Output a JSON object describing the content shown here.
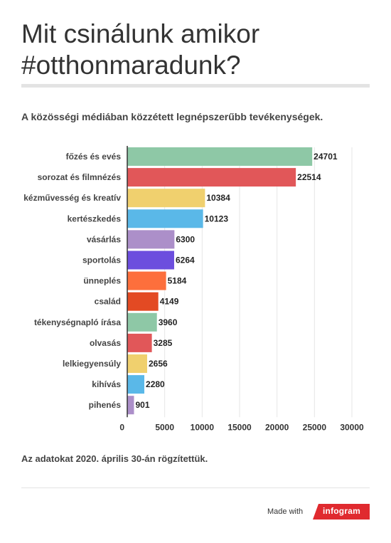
{
  "title": "Mit csinálunk amikor #otthonmaradunk?",
  "subtitle": "A közösségi médiában közzétett legnépszerűbb tevékenységek.",
  "footnote": "Az adatokat 2020. április 30-án rögzítettük.",
  "footer": {
    "made_with": "Made with",
    "brand": "infogram",
    "brand_color": "#e02a2f"
  },
  "chart_data": {
    "type": "bar",
    "orientation": "horizontal",
    "categories": [
      "főzés és evés",
      "sorozat és filmnézés",
      "kézművesség és kreatív",
      "kertészkedés",
      "vásárlás",
      "sportolás",
      "ünneplés",
      "család",
      "tékenységnapló írása",
      "olvasás",
      "lelkiegyensúly",
      "kihívás",
      "pihenés"
    ],
    "values": [
      24701,
      22514,
      10384,
      10123,
      6300,
      6264,
      5184,
      4149,
      3960,
      3285,
      2656,
      2280,
      901
    ],
    "colors": [
      "#8ec8a6",
      "#e15759",
      "#f0d06e",
      "#5ab8e8",
      "#ac8fc9",
      "#6c4ede",
      "#fd6f3c",
      "#e34a23",
      "#8ec8a6",
      "#e15759",
      "#f0d06e",
      "#5ab8e8",
      "#ac8fc9"
    ],
    "xlim": [
      0,
      30000
    ],
    "xticks": [
      0,
      5000,
      10000,
      15000,
      20000,
      25000,
      30000
    ],
    "grid": true
  }
}
